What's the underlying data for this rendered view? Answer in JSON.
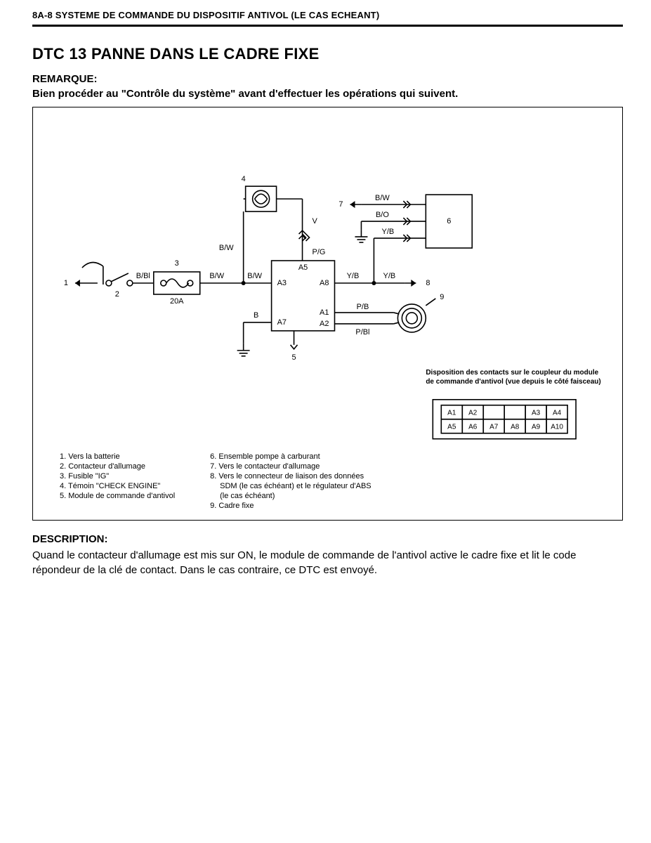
{
  "header": "8A-8   SYSTEME DE COMMANDE DU DISPOSITIF ANTIVOL (LE CAS ECHEANT)",
  "title": "DTC 13   PANNE DANS LE CADRE FIXE",
  "remark_label": "REMARQUE:",
  "remark_body": "Bien procéder au \"Contrôle du système\" avant d'effectuer les opérations qui suivent.",
  "diagram": {
    "stroke": "#000000",
    "stroke_width": 1.6,
    "font_size_label": 11,
    "font_size_small": 10,
    "module_pins": {
      "A3": "A3",
      "A5": "A5",
      "A7": "A7",
      "A8": "A8",
      "A1": "A1",
      "A2": "A2"
    },
    "wires": {
      "bbi": "B/Bl",
      "bw": "B/W",
      "v": "V",
      "pg": "P/G",
      "yb": "Y/B",
      "pb": "P/B",
      "pbl": "P/Bl",
      "b": "B",
      "bo": "B/O"
    },
    "fuse_rating": "20A",
    "node_nums": {
      "n1": "1",
      "n2": "2",
      "n3": "3",
      "n4": "4",
      "n5": "5",
      "n6": "6",
      "n7": "7",
      "n8": "8",
      "n9": "9"
    },
    "connector_caption": "Disposition des contacts sur le coupleur du module de commande d'antivol (vue depuis le côté faisceau)",
    "connector_cells": [
      [
        "A1",
        "A2",
        "",
        "",
        "A3",
        "A4"
      ],
      [
        "A5",
        "A6",
        "A7",
        "A8",
        "A9",
        "A10"
      ]
    ]
  },
  "legend_left": [
    "1. Vers la batterie",
    "2. Contacteur d'allumage",
    "3. Fusible \"IG\"",
    "4. Témoin \"CHECK ENGINE\"",
    "5. Module de commande d'antivol"
  ],
  "legend_right": [
    "6. Ensemble pompe à carburant",
    "7. Vers le contacteur d'allumage",
    "8. Vers le connecteur de liaison des données",
    "    SDM (le cas échéant) et le régulateur d'ABS",
    "    (le cas échéant)",
    "9. Cadre fixe"
  ],
  "description_label": "DESCRIPTION:",
  "description_body": "Quand le contacteur d'allumage est mis sur ON, le module de commande de l'antivol active le cadre fixe et lit le code répondeur de la clé de contact. Dans le cas contraire, ce DTC est envoyé."
}
